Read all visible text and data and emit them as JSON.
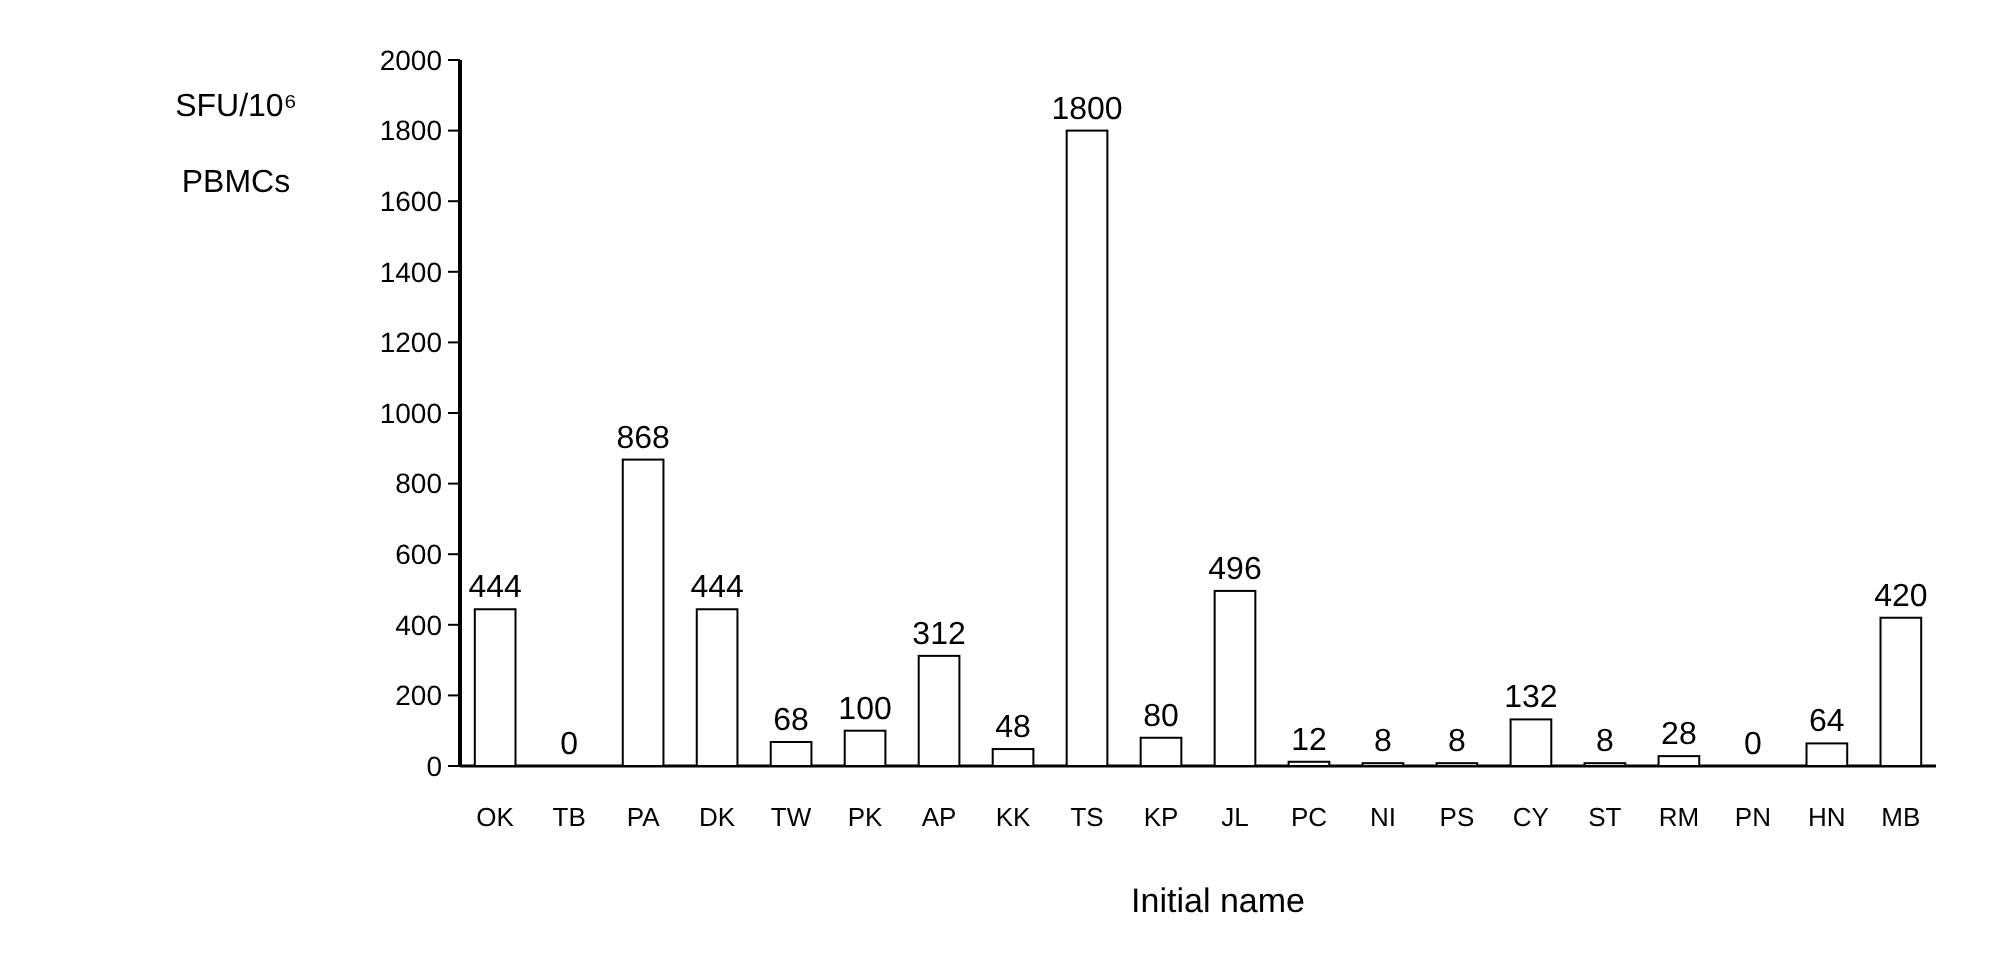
{
  "chart_data": {
    "type": "bar",
    "ylabel": "SFU/10⁶ PBMCs",
    "xlabel": "Initial name",
    "categories": [
      "OK",
      "TB",
      "PA",
      "DK",
      "TW",
      "PK",
      "AP",
      "KK",
      "TS",
      "KP",
      "JL",
      "PC",
      "NI",
      "PS",
      "CY",
      "ST",
      "RM",
      "PN",
      "HN",
      "MB"
    ],
    "values": [
      444,
      0,
      868,
      444,
      68,
      100,
      312,
      48,
      1800,
      80,
      496,
      12,
      8,
      8,
      132,
      8,
      28,
      0,
      64,
      420
    ],
    "color": "#ffffff",
    "ylim": [
      0,
      2000
    ],
    "yticks": [
      0,
      200,
      400,
      600,
      800,
      1000,
      1200,
      1400,
      1600,
      1800,
      2000
    ],
    "data_labels": true,
    "grid": false
  }
}
